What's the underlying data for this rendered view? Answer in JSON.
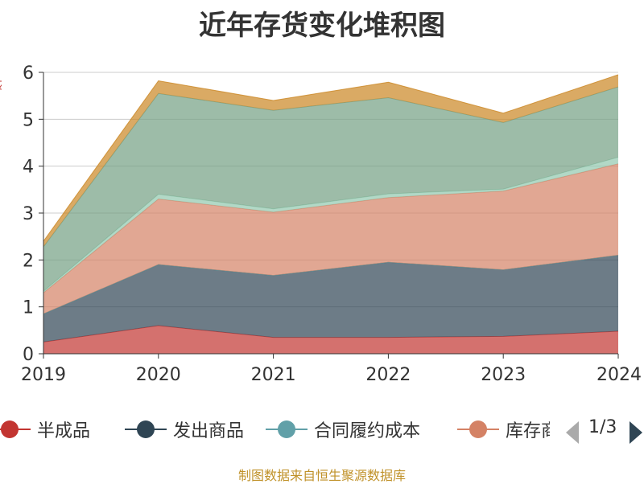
{
  "chart_data": {
    "type": "area",
    "stacked": true,
    "title": "近年存货变化堆积图",
    "categories": [
      "2019",
      "2020",
      "2021",
      "2022",
      "2023",
      "2024"
    ],
    "ylim": [
      0,
      6
    ],
    "yticks": [
      0,
      1,
      2,
      3,
      4,
      5,
      6
    ],
    "grid": true,
    "ylabel_fragment": "亿",
    "series": [
      {
        "name": "半成品",
        "values": [
          0.25,
          0.6,
          0.35,
          0.35,
          0.37,
          0.48
        ],
        "color": "#c23531"
      },
      {
        "name": "发出商品",
        "values": [
          0.6,
          1.3,
          1.32,
          1.6,
          1.42,
          1.62
        ],
        "color": "#2f4554"
      },
      {
        "name": "合同履约成本",
        "values": [
          0.0,
          0.0,
          0.0,
          0.0,
          0.0,
          0.0
        ],
        "color": "#61a0a8"
      },
      {
        "name": "库存商品",
        "values": [
          0.45,
          1.4,
          1.35,
          1.38,
          1.68,
          1.95
        ],
        "color": "#d48265"
      },
      {
        "name": "",
        "values": [
          0.03,
          0.1,
          0.07,
          0.08,
          0.04,
          0.14
        ],
        "color": "#91c7ae"
      },
      {
        "name": "",
        "values": [
          0.95,
          2.15,
          2.1,
          2.05,
          1.42,
          1.5
        ],
        "color": "#749f83"
      },
      {
        "name": "",
        "values": [
          0.12,
          0.27,
          0.21,
          0.33,
          0.2,
          0.26
        ],
        "color": "#ca8622"
      }
    ],
    "legend": {
      "page": "1/3",
      "placement": "bottom"
    }
  },
  "footer": {
    "source": "制图数据来自恒生聚源数据库"
  }
}
